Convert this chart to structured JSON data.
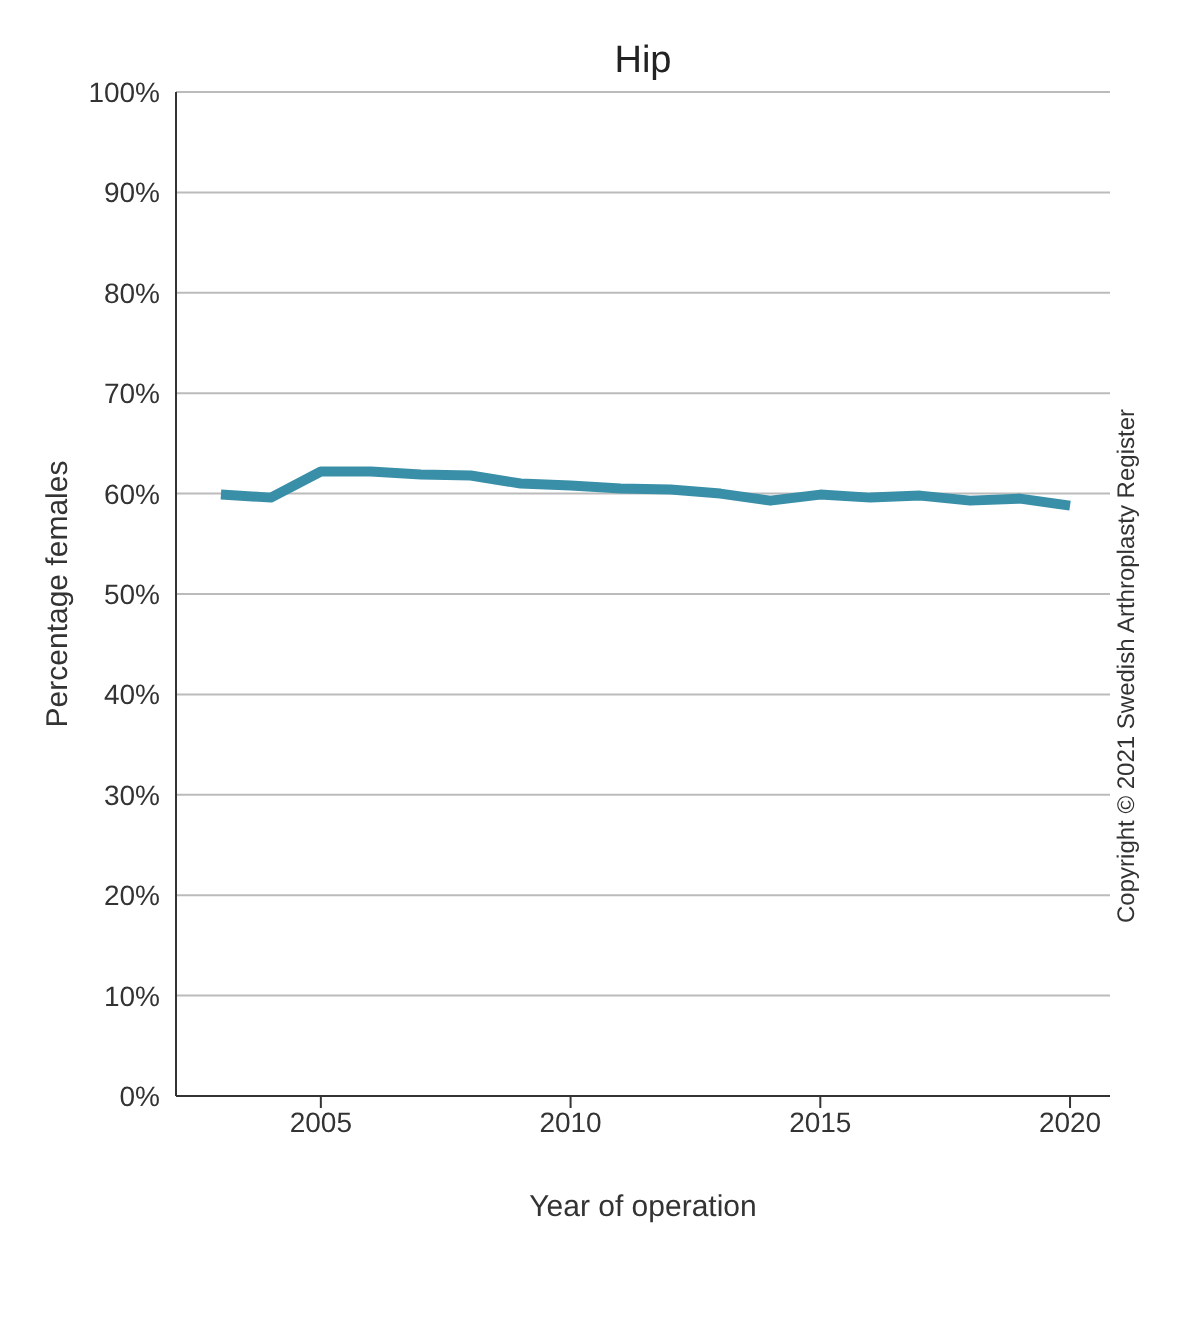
{
  "chart_data": {
    "type": "line",
    "title": "Hip",
    "xlabel": "Year of operation",
    "ylabel": "Percentage females",
    "annotations": [
      "Copyright © 2021 Swedish Arthroplasty Register"
    ],
    "x": [
      2003,
      2004,
      2005,
      2006,
      2007,
      2008,
      2009,
      2010,
      2011,
      2012,
      2013,
      2014,
      2015,
      2016,
      2017,
      2018,
      2019,
      2020
    ],
    "series": [
      {
        "color": "#3a8fa8",
        "values": [
          59.9,
          59.6,
          62.2,
          62.2,
          61.9,
          61.8,
          61.0,
          60.8,
          60.5,
          60.4,
          60.0,
          59.3,
          59.9,
          59.6,
          59.8,
          59.3,
          59.5,
          58.8
        ]
      }
    ],
    "xlim": [
      2002.1,
      2020.8
    ],
    "xticks": [
      2005,
      2010,
      2015,
      2020
    ],
    "ylim": [
      0,
      100
    ],
    "yticks": [
      {
        "value": 0,
        "label": "0%"
      },
      {
        "value": 10,
        "label": "10%"
      },
      {
        "value": 20,
        "label": "20%"
      },
      {
        "value": 30,
        "label": "30%"
      },
      {
        "value": 40,
        "label": "40%"
      },
      {
        "value": 50,
        "label": "50%"
      },
      {
        "value": 60,
        "label": "60%"
      },
      {
        "value": 70,
        "label": "70%"
      },
      {
        "value": 80,
        "label": "80%"
      },
      {
        "value": 90,
        "label": "90%"
      },
      {
        "value": 100,
        "label": "100%"
      }
    ],
    "grid": "y",
    "legend": false,
    "marker": "none",
    "line_style": "solid"
  }
}
